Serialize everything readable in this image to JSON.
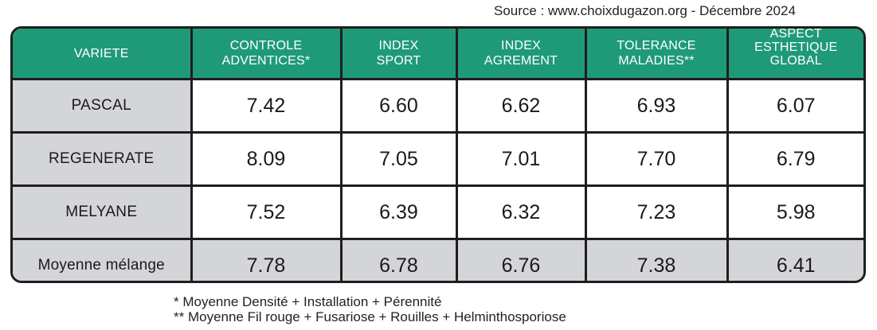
{
  "source": "Source : www.choixdugazon.org - Décembre 2024",
  "headers": [
    [
      "VARIETE"
    ],
    [
      "CONTROLE",
      "ADVENTICES*"
    ],
    [
      "INDEX",
      "SPORT"
    ],
    [
      "INDEX",
      "AGREMENT"
    ],
    [
      "TOLERANCE",
      "MALADIES**"
    ],
    [
      "ASPECT",
      "ESTHETIQUE",
      "GLOBAL"
    ]
  ],
  "rows": [
    {
      "variety": "PASCAL",
      "values": [
        "7.42",
        "6.60",
        "6.62",
        "6.93",
        "6.07"
      ]
    },
    {
      "variety": "REGENERATE",
      "values": [
        "8.09",
        "7.05",
        "7.01",
        "7.70",
        "6.79"
      ]
    },
    {
      "variety": "MELYANE",
      "values": [
        "7.52",
        "6.39",
        "6.32",
        "7.23",
        "5.98"
      ]
    },
    {
      "variety": "Moyenne mélange",
      "values": [
        "7.78",
        "6.78",
        "6.76",
        "7.38",
        "6.41"
      ]
    }
  ],
  "footnotes": [
    "* Moyenne Densité + Installation + Pérennité",
    "** Moyenne Fil rouge + Fusariose + Rouilles + Helminthosporiose"
  ],
  "colors": {
    "header_bg": "#1f9a79",
    "label_bg": "#d4d5d8",
    "border": "#1e1e1e"
  }
}
